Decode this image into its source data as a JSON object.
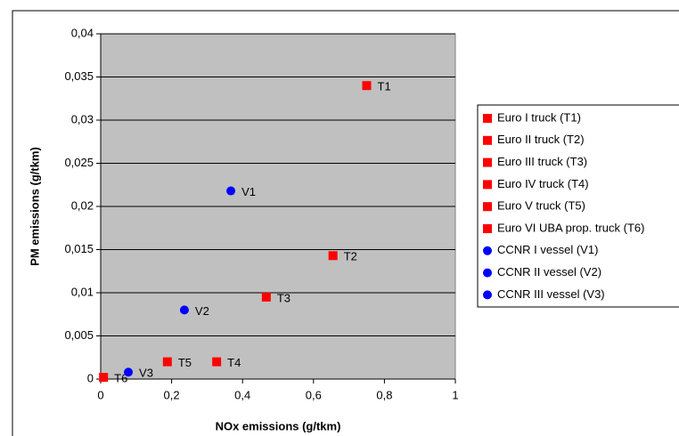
{
  "chart_data": {
    "type": "scatter",
    "xlabel": "NOx emissions (g/tkm)",
    "ylabel": "PM emissions (g/tkm)",
    "xlim": [
      0,
      1
    ],
    "ylim": [
      0,
      0.04
    ],
    "xticks": [
      0,
      {
        "value": 0.2,
        "label": "0,2"
      },
      {
        "value": 0.4,
        "label": "0,4"
      },
      {
        "value": 0.6,
        "label": "0,6"
      },
      {
        "value": 0.8,
        "label": "0,8"
      },
      1
    ],
    "yticks": [
      0,
      {
        "value": 0.005,
        "label": "0,005"
      },
      {
        "value": 0.01,
        "label": "0,01"
      },
      {
        "value": 0.015,
        "label": "0,015"
      },
      {
        "value": 0.02,
        "label": "0,02"
      },
      {
        "value": 0.025,
        "label": "0,025"
      },
      {
        "value": 0.03,
        "label": "0,03"
      },
      {
        "value": 0.035,
        "label": "0,035"
      },
      {
        "value": 0.04,
        "label": "0,04"
      }
    ],
    "grid": true,
    "legend": "right",
    "series": [
      {
        "name": "Euro I truck (T1)",
        "color": "#ff0000",
        "marker": "square",
        "labels": [
          "T1"
        ],
        "x": [
          0.75
        ],
        "values": [
          0.034
        ]
      },
      {
        "name": "Euro II truck (T2)",
        "color": "#ff0000",
        "marker": "square",
        "labels": [
          "T2"
        ],
        "x": [
          0.655
        ],
        "values": [
          0.0143
        ]
      },
      {
        "name": "Euro III truck (T3)",
        "color": "#ff0000",
        "marker": "square",
        "labels": [
          "T3"
        ],
        "x": [
          0.467
        ],
        "values": [
          0.0095
        ]
      },
      {
        "name": "Euro IV truck (T4)",
        "color": "#ff0000",
        "marker": "square",
        "labels": [
          "T4"
        ],
        "x": [
          0.327
        ],
        "values": [
          0.002
        ]
      },
      {
        "name": "Euro V truck (T5)",
        "color": "#ff0000",
        "marker": "square",
        "labels": [
          "T5"
        ],
        "x": [
          0.188
        ],
        "values": [
          0.002
        ]
      },
      {
        "name": "Euro VI UBA prop. truck (T6)",
        "color": "#ff0000",
        "marker": "square",
        "labels": [
          "T6"
        ],
        "x": [
          0.008
        ],
        "values": [
          0.0002
        ]
      },
      {
        "name": "CCNR I vessel (V1)",
        "color": "#0000ff",
        "marker": "circle",
        "labels": [
          "V1"
        ],
        "x": [
          0.367
        ],
        "values": [
          0.0218
        ]
      },
      {
        "name": "CCNR II vessel (V2)",
        "color": "#0000ff",
        "marker": "circle",
        "labels": [
          "V2"
        ],
        "x": [
          0.236
        ],
        "values": [
          0.008
        ]
      },
      {
        "name": "CCNR III vessel (V3)",
        "color": "#0000ff",
        "marker": "circle",
        "labels": [
          "V3"
        ],
        "x": [
          0.078
        ],
        "values": [
          0.0008
        ]
      }
    ]
  }
}
